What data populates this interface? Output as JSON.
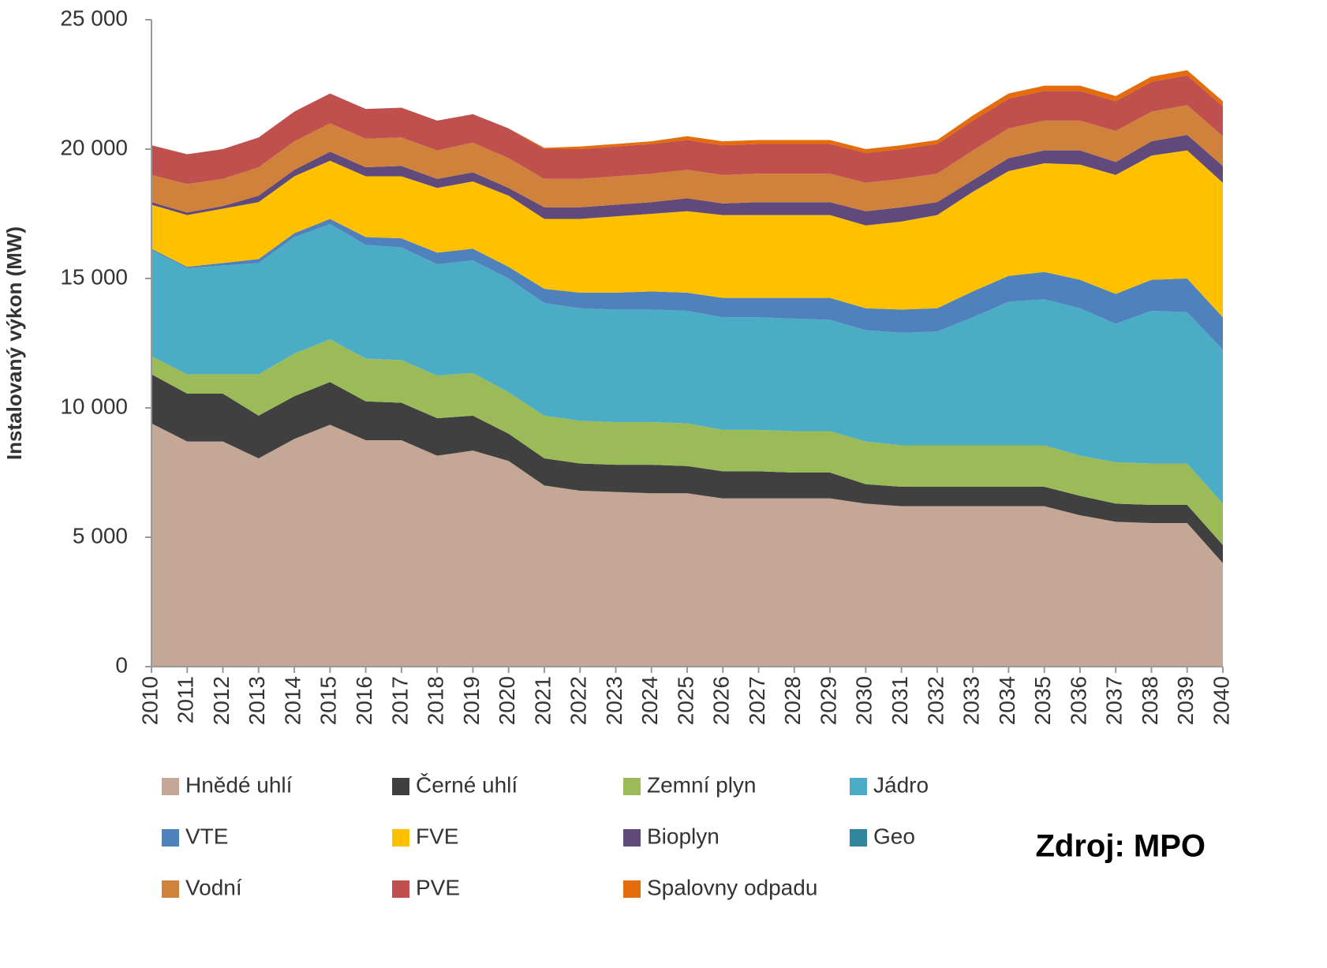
{
  "chart_data": {
    "type": "stacked_area",
    "ylabel": "Instalovaný výkon (MW)",
    "annotation": "Zdroj: MPO",
    "categories": [
      "2010",
      "2011",
      "2012",
      "2013",
      "2014",
      "2015",
      "2016",
      "2017",
      "2018",
      "2019",
      "2020",
      "2021",
      "2022",
      "2023",
      "2024",
      "2025",
      "2026",
      "2027",
      "2028",
      "2029",
      "2030",
      "2031",
      "2032",
      "2033",
      "2034",
      "2035",
      "2036",
      "2037",
      "2038",
      "2039",
      "2040"
    ],
    "ylim": [
      0,
      25000
    ],
    "yticks": [
      0,
      {
        "value": 5000,
        "label": "5 000"
      },
      {
        "value": 10000,
        "label": "10 000"
      },
      {
        "value": 15000,
        "label": "15 000"
      },
      {
        "value": 20000,
        "label": "20 000"
      },
      {
        "value": 25000,
        "label": "25 000"
      }
    ],
    "grid": false,
    "series": [
      {
        "name": "Hnědé uhlí",
        "color": "#c4a796",
        "values": [
          9400,
          8700,
          8700,
          8050,
          8800,
          9350,
          8750,
          8750,
          8150,
          8350,
          7950,
          7000,
          6800,
          6750,
          6700,
          6700,
          6500,
          6500,
          6500,
          6500,
          6300,
          6200,
          6200,
          6200,
          6200,
          6200,
          5850,
          5600,
          5550,
          5550,
          4000
        ]
      },
      {
        "name": "Černé uhlí",
        "color": "#404040",
        "values": [
          1900,
          1850,
          1850,
          1650,
          1650,
          1650,
          1500,
          1450,
          1450,
          1350,
          1050,
          1050,
          1050,
          1050,
          1100,
          1050,
          1050,
          1050,
          1000,
          1000,
          750,
          750,
          750,
          750,
          750,
          750,
          750,
          700,
          700,
          700,
          700
        ]
      },
      {
        "name": "Zemní plyn",
        "color": "#9bbb59",
        "values": [
          700,
          750,
          750,
          1600,
          1650,
          1650,
          1650,
          1650,
          1650,
          1650,
          1600,
          1650,
          1650,
          1650,
          1650,
          1650,
          1600,
          1600,
          1600,
          1600,
          1650,
          1600,
          1600,
          1600,
          1600,
          1600,
          1550,
          1600,
          1600,
          1600,
          1600
        ]
      },
      {
        "name": "Jádro",
        "color": "#4bacc6",
        "values": [
          4100,
          4100,
          4200,
          4300,
          4500,
          4450,
          4400,
          4350,
          4300,
          4350,
          4400,
          4350,
          4350,
          4350,
          4350,
          4350,
          4350,
          4350,
          4350,
          4300,
          4300,
          4350,
          4400,
          4950,
          5550,
          5650,
          5700,
          5350,
          5900,
          5850,
          5950
        ]
      },
      {
        "name": "VTE",
        "color": "#4f81bd",
        "values": [
          50,
          50,
          100,
          150,
          150,
          200,
          300,
          350,
          450,
          450,
          450,
          550,
          600,
          650,
          700,
          700,
          750,
          750,
          800,
          850,
          850,
          900,
          900,
          1000,
          1000,
          1050,
          1100,
          1150,
          1200,
          1300,
          1250
        ]
      },
      {
        "name": "FVE",
        "color": "#ffc000",
        "values": [
          1700,
          2000,
          2100,
          2200,
          2200,
          2250,
          2350,
          2400,
          2500,
          2600,
          2750,
          2700,
          2850,
          2950,
          3000,
          3150,
          3200,
          3200,
          3200,
          3200,
          3200,
          3400,
          3600,
          3850,
          4050,
          4200,
          4450,
          4600,
          4800,
          4950,
          5200
        ]
      },
      {
        "name": "Bioplyn",
        "color": "#604a7b",
        "values": [
          100,
          100,
          100,
          250,
          250,
          350,
          350,
          400,
          350,
          350,
          300,
          450,
          450,
          450,
          450,
          500,
          450,
          500,
          500,
          500,
          550,
          550,
          500,
          450,
          500,
          500,
          550,
          500,
          550,
          600,
          650
        ]
      },
      {
        "name": "Geo",
        "color": "#31859c",
        "values": [
          0,
          0,
          0,
          0,
          0,
          0,
          0,
          0,
          0,
          0,
          0,
          0,
          0,
          0,
          0,
          0,
          0,
          0,
          0,
          0,
          0,
          0,
          0,
          0,
          0,
          0,
          0,
          0,
          0,
          0,
          0
        ]
      },
      {
        "name": "Vodní",
        "color": "#d0813b",
        "values": [
          1050,
          1100,
          1050,
          1100,
          1100,
          1100,
          1100,
          1100,
          1100,
          1150,
          1150,
          1100,
          1100,
          1100,
          1100,
          1100,
          1100,
          1100,
          1100,
          1100,
          1100,
          1100,
          1100,
          1150,
          1150,
          1150,
          1150,
          1200,
          1150,
          1150,
          1150
        ]
      },
      {
        "name": "PVE",
        "color": "#c0504d",
        "values": [
          1150,
          1150,
          1150,
          1150,
          1150,
          1150,
          1150,
          1150,
          1150,
          1100,
          1150,
          1150,
          1150,
          1150,
          1150,
          1150,
          1150,
          1150,
          1150,
          1150,
          1150,
          1150,
          1150,
          1150,
          1150,
          1150,
          1150,
          1150,
          1150,
          1150,
          1150
        ]
      },
      {
        "name": "Spalovny odpadu",
        "color": "#e46c0a",
        "values": [
          0,
          0,
          0,
          0,
          0,
          0,
          0,
          0,
          0,
          0,
          0,
          50,
          100,
          100,
          100,
          150,
          150,
          150,
          150,
          150,
          150,
          150,
          150,
          200,
          200,
          200,
          200,
          200,
          200,
          200,
          200
        ]
      }
    ]
  }
}
